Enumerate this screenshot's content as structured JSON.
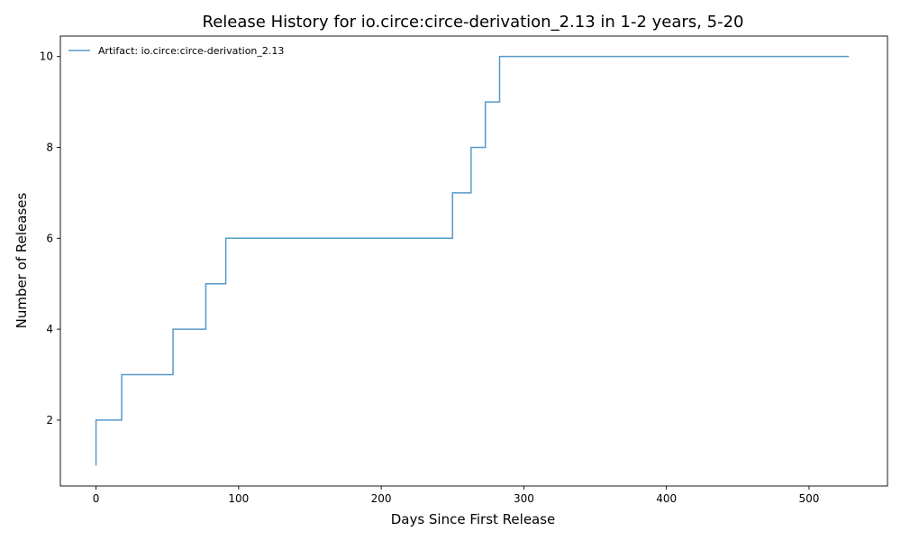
{
  "chart_data": {
    "type": "line",
    "title": "Release History for io.circe:circe-derivation_2.13 in 1-2 years, 5-20",
    "xlabel": "Days Since First Release",
    "ylabel": "Number of Releases",
    "xlim": [
      -25,
      555
    ],
    "ylim": [
      0.55,
      10.45
    ],
    "xticks": [
      0,
      100,
      200,
      300,
      400,
      500
    ],
    "yticks": [
      2,
      4,
      6,
      8,
      10
    ],
    "grid": false,
    "legend": "top-left",
    "step": "post",
    "series": [
      {
        "name": "Artifact: io.circe:circe-derivation_2.13",
        "color": "#1f77b4",
        "x": [
          0,
          0,
          18,
          54,
          77,
          91,
          250,
          263,
          273,
          283,
          528
        ],
        "y": [
          1,
          2,
          3,
          4,
          5,
          6,
          7,
          8,
          9,
          10,
          10
        ]
      }
    ]
  }
}
